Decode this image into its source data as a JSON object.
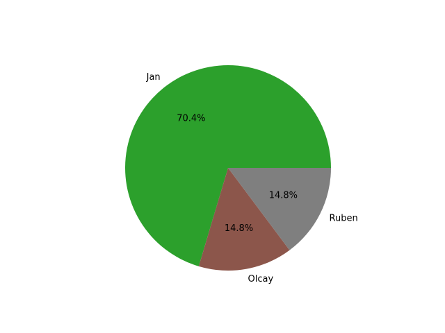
{
  "chart_data": {
    "type": "pie",
    "slices": [
      {
        "label": "Jan",
        "value": 70.4,
        "pct_label": "70.4%",
        "color": "#2ca02c"
      },
      {
        "label": "Olcay",
        "value": 14.8,
        "pct_label": "14.8%",
        "color": "#8c564b"
      },
      {
        "label": "Ruben",
        "value": 14.8,
        "pct_label": "14.8%",
        "color": "#7f7f7f"
      }
    ],
    "start_angle_deg": 0,
    "direction": "counterclockwise"
  }
}
